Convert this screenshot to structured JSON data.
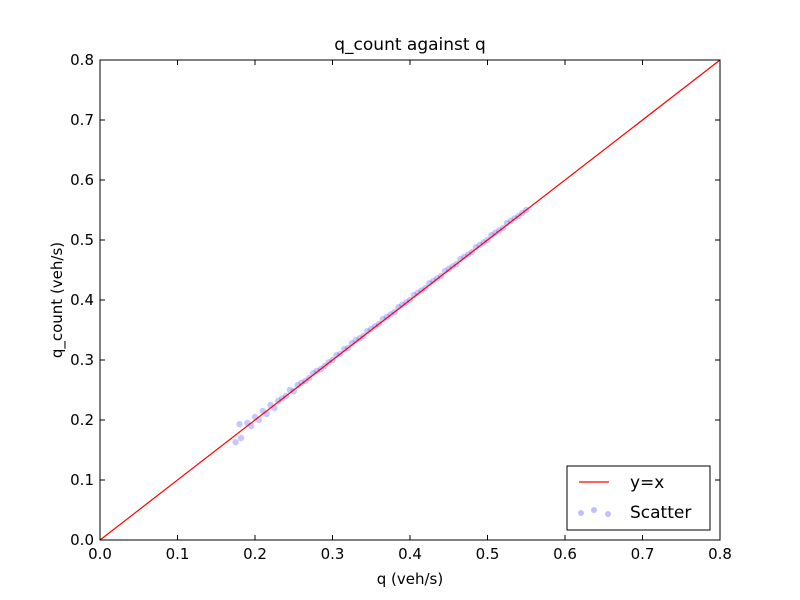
{
  "chart_data": {
    "type": "scatter",
    "title": "q_count against q",
    "xlabel": "q (veh/s)",
    "ylabel": "q_count (veh/s)",
    "xlim": [
      0.0,
      0.8
    ],
    "ylim": [
      0.0,
      0.8
    ],
    "xticks": [
      "0.0",
      "0.1",
      "0.2",
      "0.3",
      "0.4",
      "0.5",
      "0.6",
      "0.7",
      "0.8"
    ],
    "yticks": [
      "0.0",
      "0.1",
      "0.2",
      "0.3",
      "0.4",
      "0.5",
      "0.6",
      "0.7",
      "0.8"
    ],
    "grid": false,
    "legend_position": "bottom-right",
    "series": [
      {
        "name": "y=x",
        "kind": "line",
        "color": "#ff0000",
        "x": [
          0.0,
          0.8
        ],
        "y": [
          0.0,
          0.8
        ]
      },
      {
        "name": "Scatter",
        "kind": "scatter",
        "color": "#0000ff",
        "alpha": 0.22,
        "x": [
          0.175,
          0.18,
          0.182,
          0.19,
          0.195,
          0.2,
          0.205,
          0.21,
          0.215,
          0.22,
          0.225,
          0.23,
          0.235,
          0.24,
          0.245,
          0.25,
          0.255,
          0.26,
          0.265,
          0.27,
          0.275,
          0.28,
          0.285,
          0.29,
          0.295,
          0.3,
          0.305,
          0.31,
          0.315,
          0.32,
          0.325,
          0.33,
          0.335,
          0.34,
          0.345,
          0.35,
          0.355,
          0.36,
          0.365,
          0.37,
          0.375,
          0.38,
          0.385,
          0.39,
          0.395,
          0.4,
          0.405,
          0.41,
          0.415,
          0.42,
          0.425,
          0.43,
          0.435,
          0.44,
          0.445,
          0.45,
          0.455,
          0.46,
          0.465,
          0.47,
          0.475,
          0.48,
          0.485,
          0.49,
          0.495,
          0.5,
          0.505,
          0.51,
          0.515,
          0.52,
          0.525,
          0.53,
          0.535,
          0.54,
          0.545,
          0.55
        ],
        "y": [
          0.163,
          0.193,
          0.17,
          0.195,
          0.19,
          0.205,
          0.2,
          0.215,
          0.21,
          0.225,
          0.22,
          0.232,
          0.236,
          0.24,
          0.25,
          0.248,
          0.258,
          0.262,
          0.265,
          0.27,
          0.278,
          0.282,
          0.285,
          0.29,
          0.296,
          0.3,
          0.308,
          0.31,
          0.318,
          0.32,
          0.328,
          0.333,
          0.336,
          0.34,
          0.348,
          0.352,
          0.356,
          0.36,
          0.368,
          0.372,
          0.376,
          0.38,
          0.388,
          0.392,
          0.396,
          0.4,
          0.408,
          0.412,
          0.416,
          0.42,
          0.428,
          0.432,
          0.436,
          0.44,
          0.448,
          0.452,
          0.456,
          0.46,
          0.468,
          0.472,
          0.476,
          0.48,
          0.488,
          0.492,
          0.496,
          0.5,
          0.508,
          0.512,
          0.516,
          0.52,
          0.528,
          0.532,
          0.536,
          0.54,
          0.545,
          0.55
        ]
      }
    ]
  }
}
